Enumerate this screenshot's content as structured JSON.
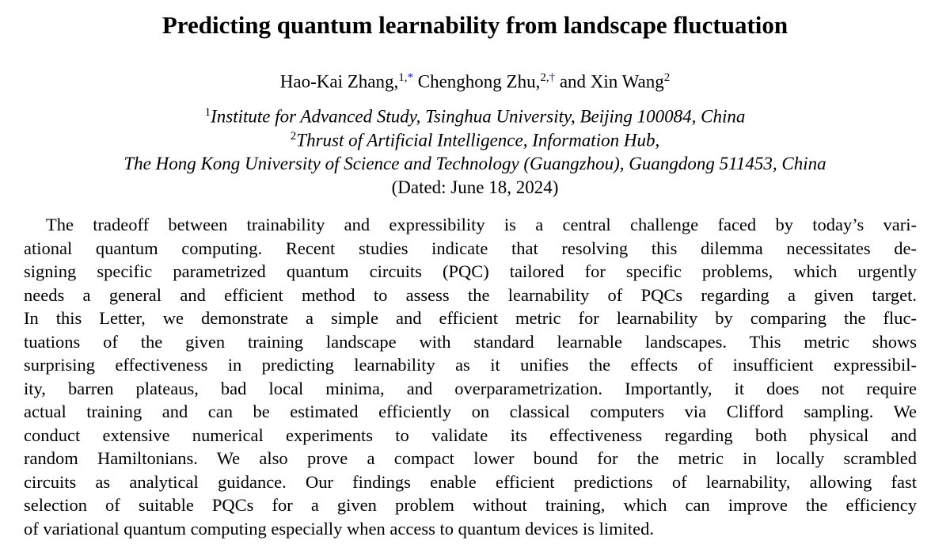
{
  "title": "Predicting quantum learnability from landscape fluctuation",
  "authors": [
    {
      "name": "Hao-Kai Zhang,",
      "affil": "1,",
      "note": "*"
    },
    {
      "name": "Chenghong Zhu,",
      "affil": "2,",
      "note": "†"
    },
    {
      "name": "and Xin Wang",
      "affil": "2"
    }
  ],
  "affiliations": [
    {
      "sup": "1",
      "text": "Institute for Advanced Study, Tsinghua University, Beijing 100084, China"
    },
    {
      "sup": "2",
      "text": "Thrust of Artificial Intelligence, Information Hub,"
    },
    {
      "text": "The Hong Kong University of Science and Technology (Guangzhou), Guangdong 511453, China"
    }
  ],
  "date": "(Dated: June 18, 2024)",
  "abstract": [
    "The tradeoff between trainability and expressibility is a central challenge faced by today’s vari-",
    "ational quantum computing. Recent studies indicate that resolving this dilemma necessitates de-",
    "signing specific parametrized quantum circuits (PQC) tailored for specific problems, which urgently",
    "needs a general and efficient method to assess the learnability of PQCs regarding a given target.",
    "In this Letter, we demonstrate a simple and efficient metric for learnability by comparing the fluc-",
    "tuations of the given training landscape with standard learnable landscapes. This metric shows",
    "surprising effectiveness in predicting learnability as it unifies the effects of insufficient expressibil-",
    "ity, barren plateaus, bad local minima, and overparametrization. Importantly, it does not require",
    "actual training and can be estimated efficiently on classical computers via Clifford sampling. We",
    "conduct extensive numerical experiments to validate its effectiveness regarding both physical and",
    "random Hamiltonians. We also prove a compact lower bound for the metric in locally scrambled",
    "circuits as analytical guidance. Our findings enable efficient predictions of learnability, allowing fast",
    "selection of suitable PQCs for a given problem without training, which can improve the efficiency",
    "of variational quantum computing especially when access to quantum devices is limited."
  ]
}
